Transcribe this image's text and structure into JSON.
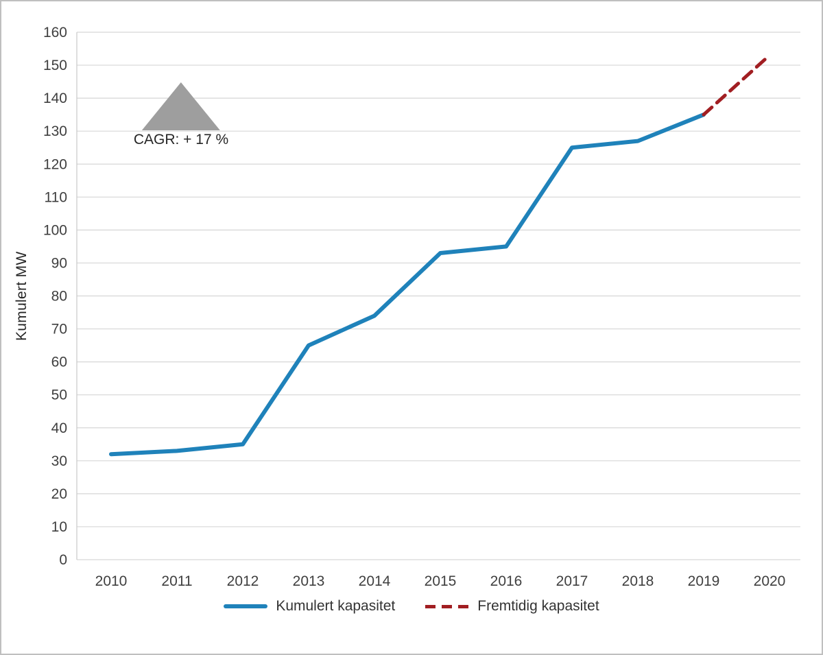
{
  "chart_data": {
    "type": "line",
    "title": "",
    "ylabel": "Kumulert MW",
    "xlabel": "",
    "ylim": [
      0,
      160
    ],
    "ytick_interval": 10,
    "grid": "horizontal",
    "legend_position": "bottom-center",
    "annotation": "CAGR: + 17 %",
    "categories": [
      "2010",
      "2011",
      "2012",
      "2013",
      "2014",
      "2015",
      "2016",
      "2017",
      "2018",
      "2019",
      "2020"
    ],
    "series": [
      {
        "name": "Kumulert kapasitet",
        "style": "solid",
        "color": "#1f82ba",
        "values": [
          32,
          33,
          35,
          65,
          74,
          93,
          95,
          125,
          127,
          135,
          null
        ]
      },
      {
        "name": "Fremtidig kapasitet",
        "style": "dashed",
        "color": "#a11e22",
        "values": [
          null,
          null,
          null,
          null,
          null,
          null,
          null,
          null,
          null,
          135,
          153
        ]
      }
    ],
    "colors": {
      "gridline": "#d6d6d6",
      "axis_line": "#c9c9c9",
      "tick_label": "#3f3f3f",
      "annotation_triangle": "#9e9e9e",
      "frame_border": "#bfbfbf"
    }
  }
}
